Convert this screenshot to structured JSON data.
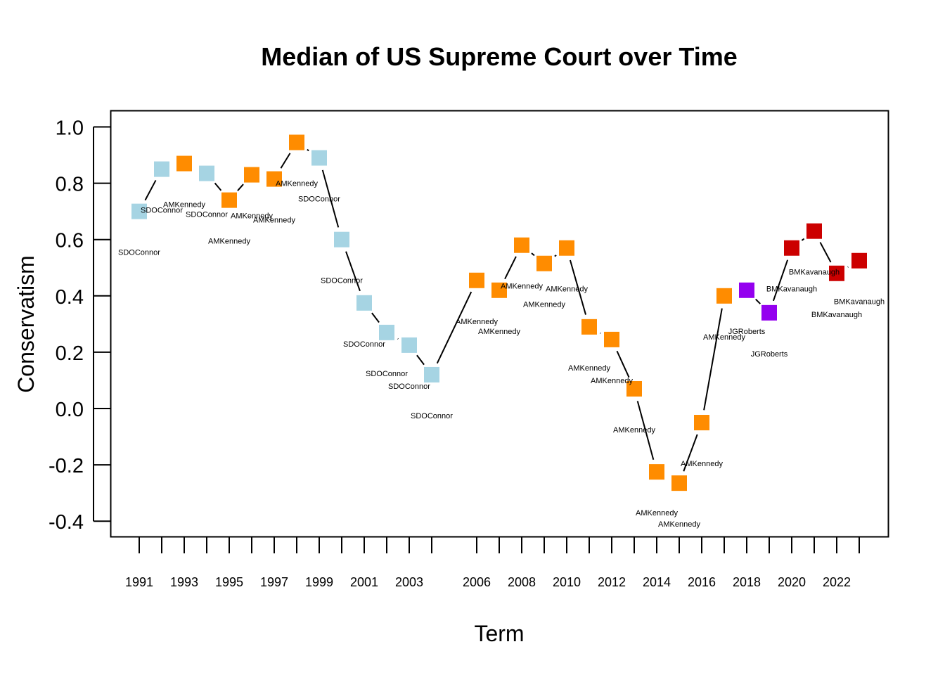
{
  "chart_data": {
    "type": "line",
    "title": "Median of US Supreme Court over Time",
    "xlabel": "Term",
    "ylabel": "Conservatism",
    "ylim": [
      -0.45,
      1.05
    ],
    "yticks": [
      -0.4,
      -0.2,
      0.0,
      0.2,
      0.4,
      0.6,
      0.8,
      1.0
    ],
    "ytick_labels": [
      "-0.4",
      "-0.2",
      "0.0",
      "0.2",
      "0.4",
      "0.6",
      "0.8",
      "1.0"
    ],
    "xtick_labels": [
      "1991",
      "1993",
      "1995",
      "1997",
      "1999",
      "2001",
      "2003",
      "2006",
      "2008",
      "2010",
      "2012",
      "2014",
      "2016",
      "2018",
      "2020",
      "2022"
    ],
    "grid": false,
    "justice_colors": {
      "SDOConnor": "#a6d4e3",
      "AMKennedy": "#ff8c00",
      "JGRoberts": "#9400ef",
      "BMKavanaugh": "#cc0000"
    },
    "points": [
      {
        "term": 1991,
        "value": 0.7,
        "justice": "SDOConnor"
      },
      {
        "term": 1992,
        "value": 0.85,
        "justice": "SDOConnor"
      },
      {
        "term": 1993,
        "value": 0.87,
        "justice": "AMKennedy"
      },
      {
        "term": 1994,
        "value": 0.835,
        "justice": "SDOConnor"
      },
      {
        "term": 1995,
        "value": 0.74,
        "justice": "AMKennedy"
      },
      {
        "term": 1996,
        "value": 0.83,
        "justice": "AMKennedy"
      },
      {
        "term": 1997,
        "value": 0.815,
        "justice": "AMKennedy"
      },
      {
        "term": 1998,
        "value": 0.945,
        "justice": "AMKennedy"
      },
      {
        "term": 1999,
        "value": 0.89,
        "justice": "SDOConnor"
      },
      {
        "term": 2000,
        "value": 0.6,
        "justice": "SDOConnor"
      },
      {
        "term": 2001,
        "value": 0.375,
        "justice": "SDOConnor"
      },
      {
        "term": 2002,
        "value": 0.27,
        "justice": "SDOConnor"
      },
      {
        "term": 2003,
        "value": 0.225,
        "justice": "SDOConnor"
      },
      {
        "term": 2004,
        "value": 0.12,
        "justice": "SDOConnor"
      },
      {
        "term": 2006,
        "value": 0.455,
        "justice": "AMKennedy"
      },
      {
        "term": 2007,
        "value": 0.42,
        "justice": "AMKennedy"
      },
      {
        "term": 2008,
        "value": 0.58,
        "justice": "AMKennedy"
      },
      {
        "term": 2009,
        "value": 0.515,
        "justice": "AMKennedy"
      },
      {
        "term": 2010,
        "value": 0.57,
        "justice": "AMKennedy"
      },
      {
        "term": 2011,
        "value": 0.29,
        "justice": "AMKennedy"
      },
      {
        "term": 2012,
        "value": 0.245,
        "justice": "AMKennedy"
      },
      {
        "term": 2013,
        "value": 0.07,
        "justice": "AMKennedy"
      },
      {
        "term": 2014,
        "value": -0.225,
        "justice": "AMKennedy"
      },
      {
        "term": 2015,
        "value": -0.265,
        "justice": "AMKennedy"
      },
      {
        "term": 2016,
        "value": -0.05,
        "justice": "AMKennedy"
      },
      {
        "term": 2017,
        "value": 0.4,
        "justice": "AMKennedy"
      },
      {
        "term": 2018,
        "value": 0.42,
        "justice": "JGRoberts"
      },
      {
        "term": 2019,
        "value": 0.34,
        "justice": "JGRoberts"
      },
      {
        "term": 2020,
        "value": 0.57,
        "justice": "BMKavanaugh"
      },
      {
        "term": 2021,
        "value": 0.63,
        "justice": "BMKavanaugh"
      },
      {
        "term": 2022,
        "value": 0.48,
        "justice": "BMKavanaugh"
      },
      {
        "term": 2023,
        "value": 0.525,
        "justice": "BMKavanaugh"
      }
    ]
  }
}
